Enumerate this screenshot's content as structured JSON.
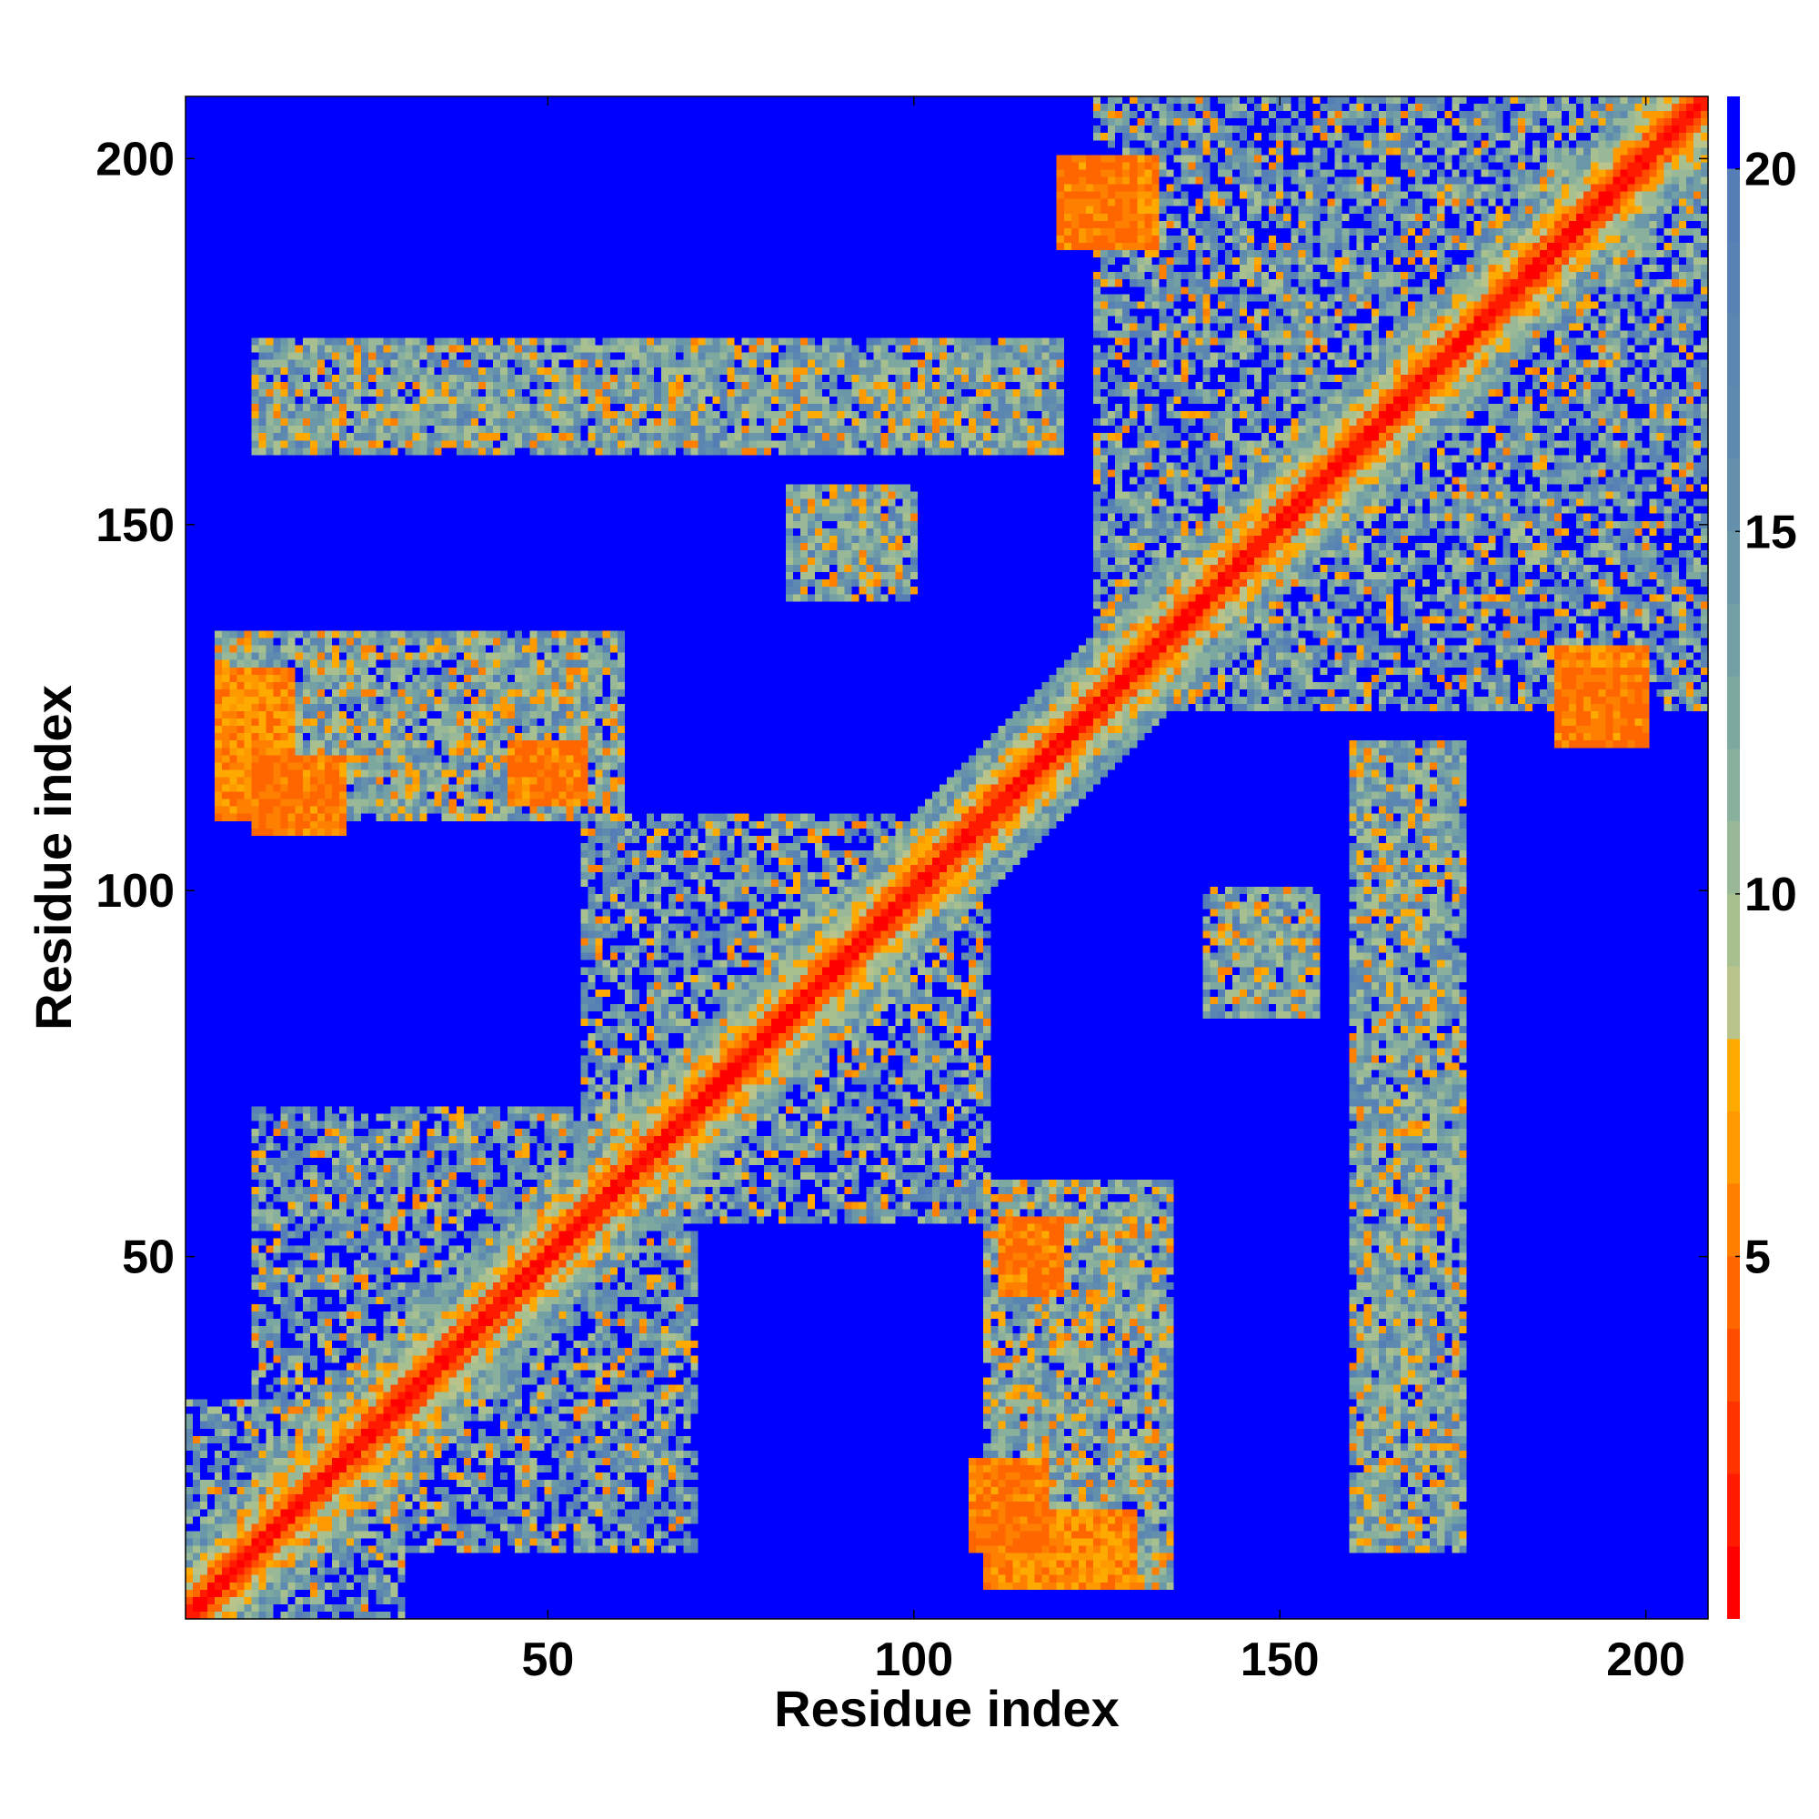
{
  "chart_data": {
    "type": "heatmap",
    "title": "",
    "xlabel": "Residue index",
    "ylabel": "Residue index",
    "n_residues": 208,
    "xlim": [
      1,
      208
    ],
    "ylim": [
      1,
      208
    ],
    "x_ticks": [
      50,
      100,
      150,
      200
    ],
    "y_ticks": [
      50,
      100,
      150,
      200
    ],
    "x_tick_labels": [
      "50",
      "100",
      "150",
      "200"
    ],
    "y_tick_labels": [
      "50",
      "100",
      "150",
      "200"
    ],
    "colorbar": {
      "range": [
        0,
        21
      ],
      "ticks": [
        5,
        10,
        15,
        20
      ],
      "tick_labels": [
        "5",
        "10",
        "15",
        "20"
      ],
      "levels": [
        {
          "max": 1,
          "color": "#ff0000"
        },
        {
          "max": 2,
          "color": "#ff1a00"
        },
        {
          "max": 3,
          "color": "#ff3300"
        },
        {
          "max": 4,
          "color": "#ff4d00"
        },
        {
          "max": 5,
          "color": "#ff6600"
        },
        {
          "max": 6,
          "color": "#ff7f00"
        },
        {
          "max": 7,
          "color": "#ff9900"
        },
        {
          "max": 8,
          "color": "#ffaa00"
        },
        {
          "max": 9,
          "color": "#b8c48c"
        },
        {
          "max": 10,
          "color": "#a8c090"
        },
        {
          "max": 11,
          "color": "#98b898"
        },
        {
          "max": 12,
          "color": "#88b09c"
        },
        {
          "max": 13,
          "color": "#7ca8a0"
        },
        {
          "max": 14,
          "color": "#72a0a4"
        },
        {
          "max": 15,
          "color": "#6a98a8"
        },
        {
          "max": 16,
          "color": "#6490ac"
        },
        {
          "max": 17,
          "color": "#5f8ab0"
        },
        {
          "max": 18,
          "color": "#5b86b2"
        },
        {
          "max": 19,
          "color": "#5882b4"
        },
        {
          "max": 20,
          "color": "#557eb6"
        },
        {
          "max": 21,
          "color": "#0000ff"
        }
      ]
    },
    "features": {
      "diagonal": "distance ~0-3 along i=j",
      "helix_band": "orange/green band within |i-j|<=8",
      "contact_blocks": [
        {
          "x": [
            1,
            30
          ],
          "y": [
            1,
            30
          ]
        },
        {
          "x": [
            10,
            70
          ],
          "y": [
            10,
            70
          ]
        },
        {
          "x": [
            55,
            110
          ],
          "y": [
            55,
            110
          ]
        },
        {
          "x": [
            110,
            135
          ],
          "y": [
            5,
            60
          ]
        },
        {
          "x": [
            5,
            60
          ],
          "y": [
            110,
            135
          ]
        },
        {
          "x": [
            125,
            208
          ],
          "y": [
            125,
            208
          ]
        },
        {
          "x": [
            83,
            100
          ],
          "y": [
            140,
            155
          ]
        },
        {
          "x": [
            140,
            155
          ],
          "y": [
            83,
            100
          ]
        },
        {
          "x": [
            160,
            175
          ],
          "y": [
            10,
            120
          ]
        },
        {
          "x": [
            10,
            120
          ],
          "y": [
            160,
            175
          ]
        }
      ],
      "strand_pairs": [
        {
          "x": [
            112,
            120
          ],
          "y": [
            45,
            55
          ]
        },
        {
          "x": [
            45,
            55
          ],
          "y": [
            112,
            120
          ]
        },
        {
          "x": [
            108,
            118
          ],
          "y": [
            10,
            22
          ]
        },
        {
          "x": [
            10,
            22
          ],
          "y": [
            108,
            118
          ]
        },
        {
          "x": [
            120,
            130
          ],
          "y": [
            188,
            200
          ]
        },
        {
          "x": [
            188,
            200
          ],
          "y": [
            120,
            130
          ]
        },
        {
          "x": [
            188,
            200
          ],
          "y": [
            120,
            133
          ]
        },
        {
          "x": [
            5,
            15
          ],
          "y": [
            110,
            130
          ]
        }
      ]
    }
  }
}
